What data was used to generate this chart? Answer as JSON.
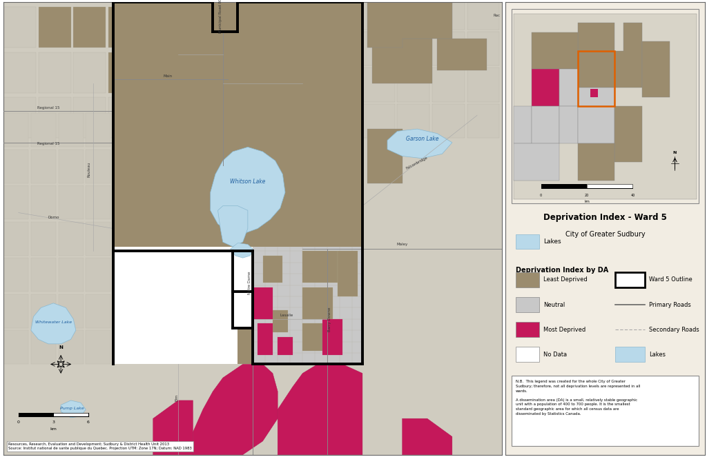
{
  "title": "Deprivation Index - Ward 5",
  "subtitle": "City of Greater Sudbury",
  "panel_bg": "#f2ede3",
  "map_bg": "#e8e4d8",
  "colors": {
    "least_deprived": "#9b8c6e",
    "neutral": "#c8c8c8",
    "most_deprived": "#c4185a",
    "no_data": "#ffffff",
    "lakes": "#b8d9ea",
    "ward_outline": "#000000",
    "primary_road": "#888888",
    "secondary_road": "#aaaaaa",
    "outer_bg": "#ddd8cc"
  },
  "note_text": "N.B.  This legend was created for the whole City of Greater\nSudbury; therefore, not all deprivation levels are represented in all\nwards.\n\nA dissemination area (DA) is a small, relatively stable geographic\nunit with a population of 400 to 700 people. It is the smallest\nstandard geographic area for which all census data are\ndisseminated by Statistics Canada.",
  "source_text": "Resources, Research, Evaluation and Development; Sudbury & District Health Unit 2013\nSource: Institut national de sante publique du Quebec. Projection UTM: Zone 17N; Datum: NAD 1983"
}
